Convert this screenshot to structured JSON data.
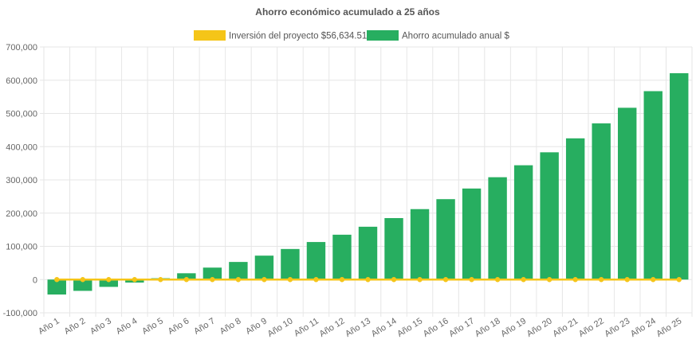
{
  "chart_data": {
    "type": "bar",
    "title": "Ahorro económico acumulado a 25 años",
    "legend_position": "top",
    "grid": true,
    "categories": [
      "Año 1",
      "Año 2",
      "Año 3",
      "Año 4",
      "Año 5",
      "Año 6",
      "Año 7",
      "Año 8",
      "Año 9",
      "Año 10",
      "Año 11",
      "Año 12",
      "Año 13",
      "Año 14",
      "Año 15",
      "Año 16",
      "Año 17",
      "Año 18",
      "Año 19",
      "Año 20",
      "Año 21",
      "Año 22",
      "Año 23",
      "Año 24",
      "Año 25"
    ],
    "ylim": [
      -100000,
      700000
    ],
    "yticks": [
      -100000,
      0,
      100000,
      200000,
      300000,
      400000,
      500000,
      600000,
      700000
    ],
    "ytick_labels": [
      "-100,000",
      "0",
      "100,000",
      "200,000",
      "300,000",
      "400,000",
      "500,000",
      "600,000",
      "700,000"
    ],
    "series": [
      {
        "name": "Inversión del proyecto $56,634.51",
        "type": "line",
        "color": "#f5c518",
        "values": [
          0,
          0,
          0,
          0,
          0,
          0,
          0,
          0,
          0,
          0,
          0,
          0,
          0,
          0,
          0,
          0,
          0,
          0,
          0,
          0,
          0,
          0,
          0,
          0,
          0
        ]
      },
      {
        "name": "Ahorro acumulado anual $",
        "type": "bar",
        "color": "#27ae60",
        "values": [
          -45000,
          -34000,
          -22000,
          -9000,
          4000,
          19000,
          36000,
          53000,
          72000,
          92000,
          113000,
          135000,
          159000,
          185000,
          212000,
          242000,
          274000,
          308000,
          344000,
          383000,
          425000,
          470000,
          517000,
          567000,
          621000
        ]
      }
    ]
  }
}
